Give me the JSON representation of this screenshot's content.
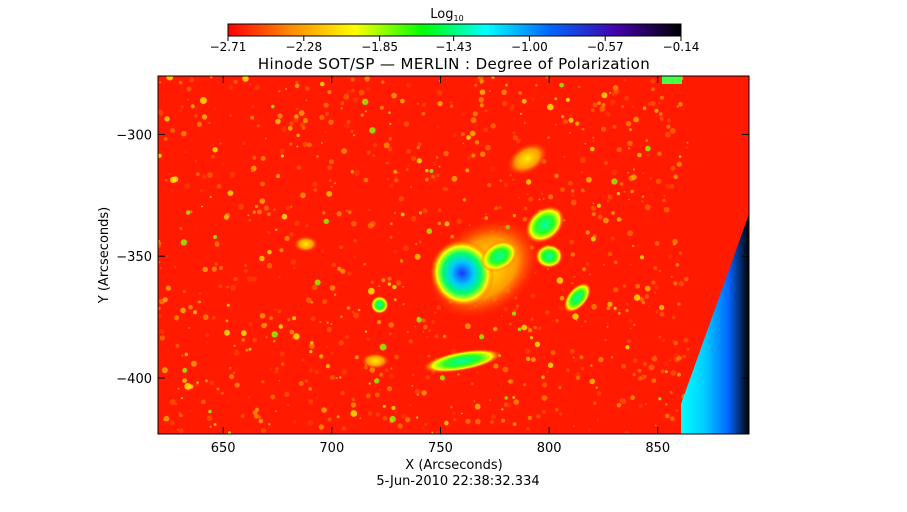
{
  "chart_data": {
    "type": "heatmap",
    "title": "Hinode SOT/SP — MERLIN : Degree of Polarization",
    "xlabel": "X (Arcseconds)",
    "ylabel": "Y (Arcseconds)",
    "date_label": "5-Jun-2010 22:38:32.334",
    "colorbar": {
      "label_main": "Log",
      "label_sub": "10",
      "ticks": [
        -2.71,
        -2.28,
        -1.85,
        -1.43,
        -1.0,
        -0.57,
        -0.14
      ],
      "tick_labels": [
        "−2.71",
        "−2.28",
        "−1.85",
        "−1.43",
        "−1.00",
        "−0.57",
        "−0.14"
      ],
      "range": [
        -2.71,
        -0.14
      ]
    },
    "xlim": [
      620,
      892
    ],
    "ylim": [
      -423,
      -276
    ],
    "x_ticks": [
      650,
      700,
      750,
      800,
      850
    ],
    "x_tick_labels": [
      "650",
      "700",
      "750",
      "800",
      "850"
    ],
    "y_ticks": [
      -300,
      -350,
      -400
    ],
    "y_tick_labels": [
      "−300",
      "−350",
      "−400"
    ],
    "colormap": [
      "#ff0000",
      "#ff8c00",
      "#ffff00",
      "#00ff00",
      "#00ffff",
      "#0066ff",
      "#4400aa",
      "#000000"
    ],
    "background_value": -2.71,
    "features": [
      {
        "name": "active-region-core",
        "x": 760,
        "y": -357,
        "peak": -0.95
      },
      {
        "name": "active-region-east",
        "x": 777,
        "y": -350,
        "peak": -1.5
      },
      {
        "name": "active-region-north",
        "x": 798,
        "y": -337,
        "peak": -1.7
      },
      {
        "name": "plage-south",
        "x": 760,
        "y": -393,
        "peak": -1.9
      },
      {
        "name": "network-west",
        "x": 722,
        "y": -370,
        "peak": -1.9
      }
    ],
    "edge_region": {
      "description": "off-scan wedge at right edge",
      "value": -0.6
    }
  }
}
